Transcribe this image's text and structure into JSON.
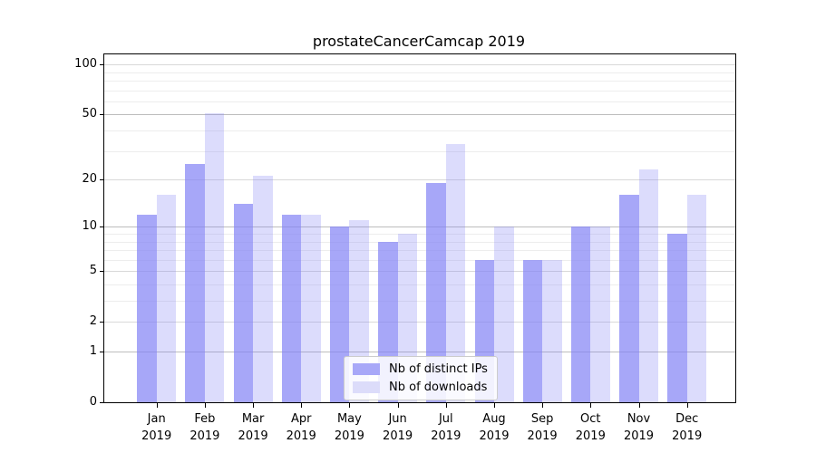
{
  "chart_data": {
    "type": "bar",
    "title": "prostateCancerCamcap 2019",
    "year": "2019",
    "categories": [
      "Jan",
      "Feb",
      "Mar",
      "Apr",
      "May",
      "Jun",
      "Jul",
      "Aug",
      "Sep",
      "Oct",
      "Nov",
      "Dec"
    ],
    "series": [
      {
        "name": "Nb of distinct IPs",
        "color": "#a8a8f8",
        "fill": "rgba(130,130,245,0.70)",
        "values": [
          12,
          25,
          14,
          12,
          10,
          8,
          19,
          6,
          6,
          10,
          16,
          9
        ]
      },
      {
        "name": "Nb of downloads",
        "color": "#dcdcfa",
        "fill": "rgba(130,130,245,0.28)",
        "values": [
          16,
          51,
          21,
          12,
          11,
          9,
          33,
          10,
          6,
          10,
          23,
          16
        ]
      }
    ],
    "yscale": "log1p",
    "ylim": [
      0,
      116
    ],
    "yticks_labeled": [
      100,
      50,
      20,
      10,
      5,
      2,
      1,
      0
    ],
    "grid_strong": [
      1,
      10,
      50
    ],
    "grid_mid": [
      2,
      5,
      20,
      100
    ],
    "grid_minor": [
      3,
      4,
      6,
      7,
      8,
      9,
      30,
      40,
      60,
      70,
      80,
      90
    ],
    "legend_position": "lower center",
    "grid": "on"
  }
}
